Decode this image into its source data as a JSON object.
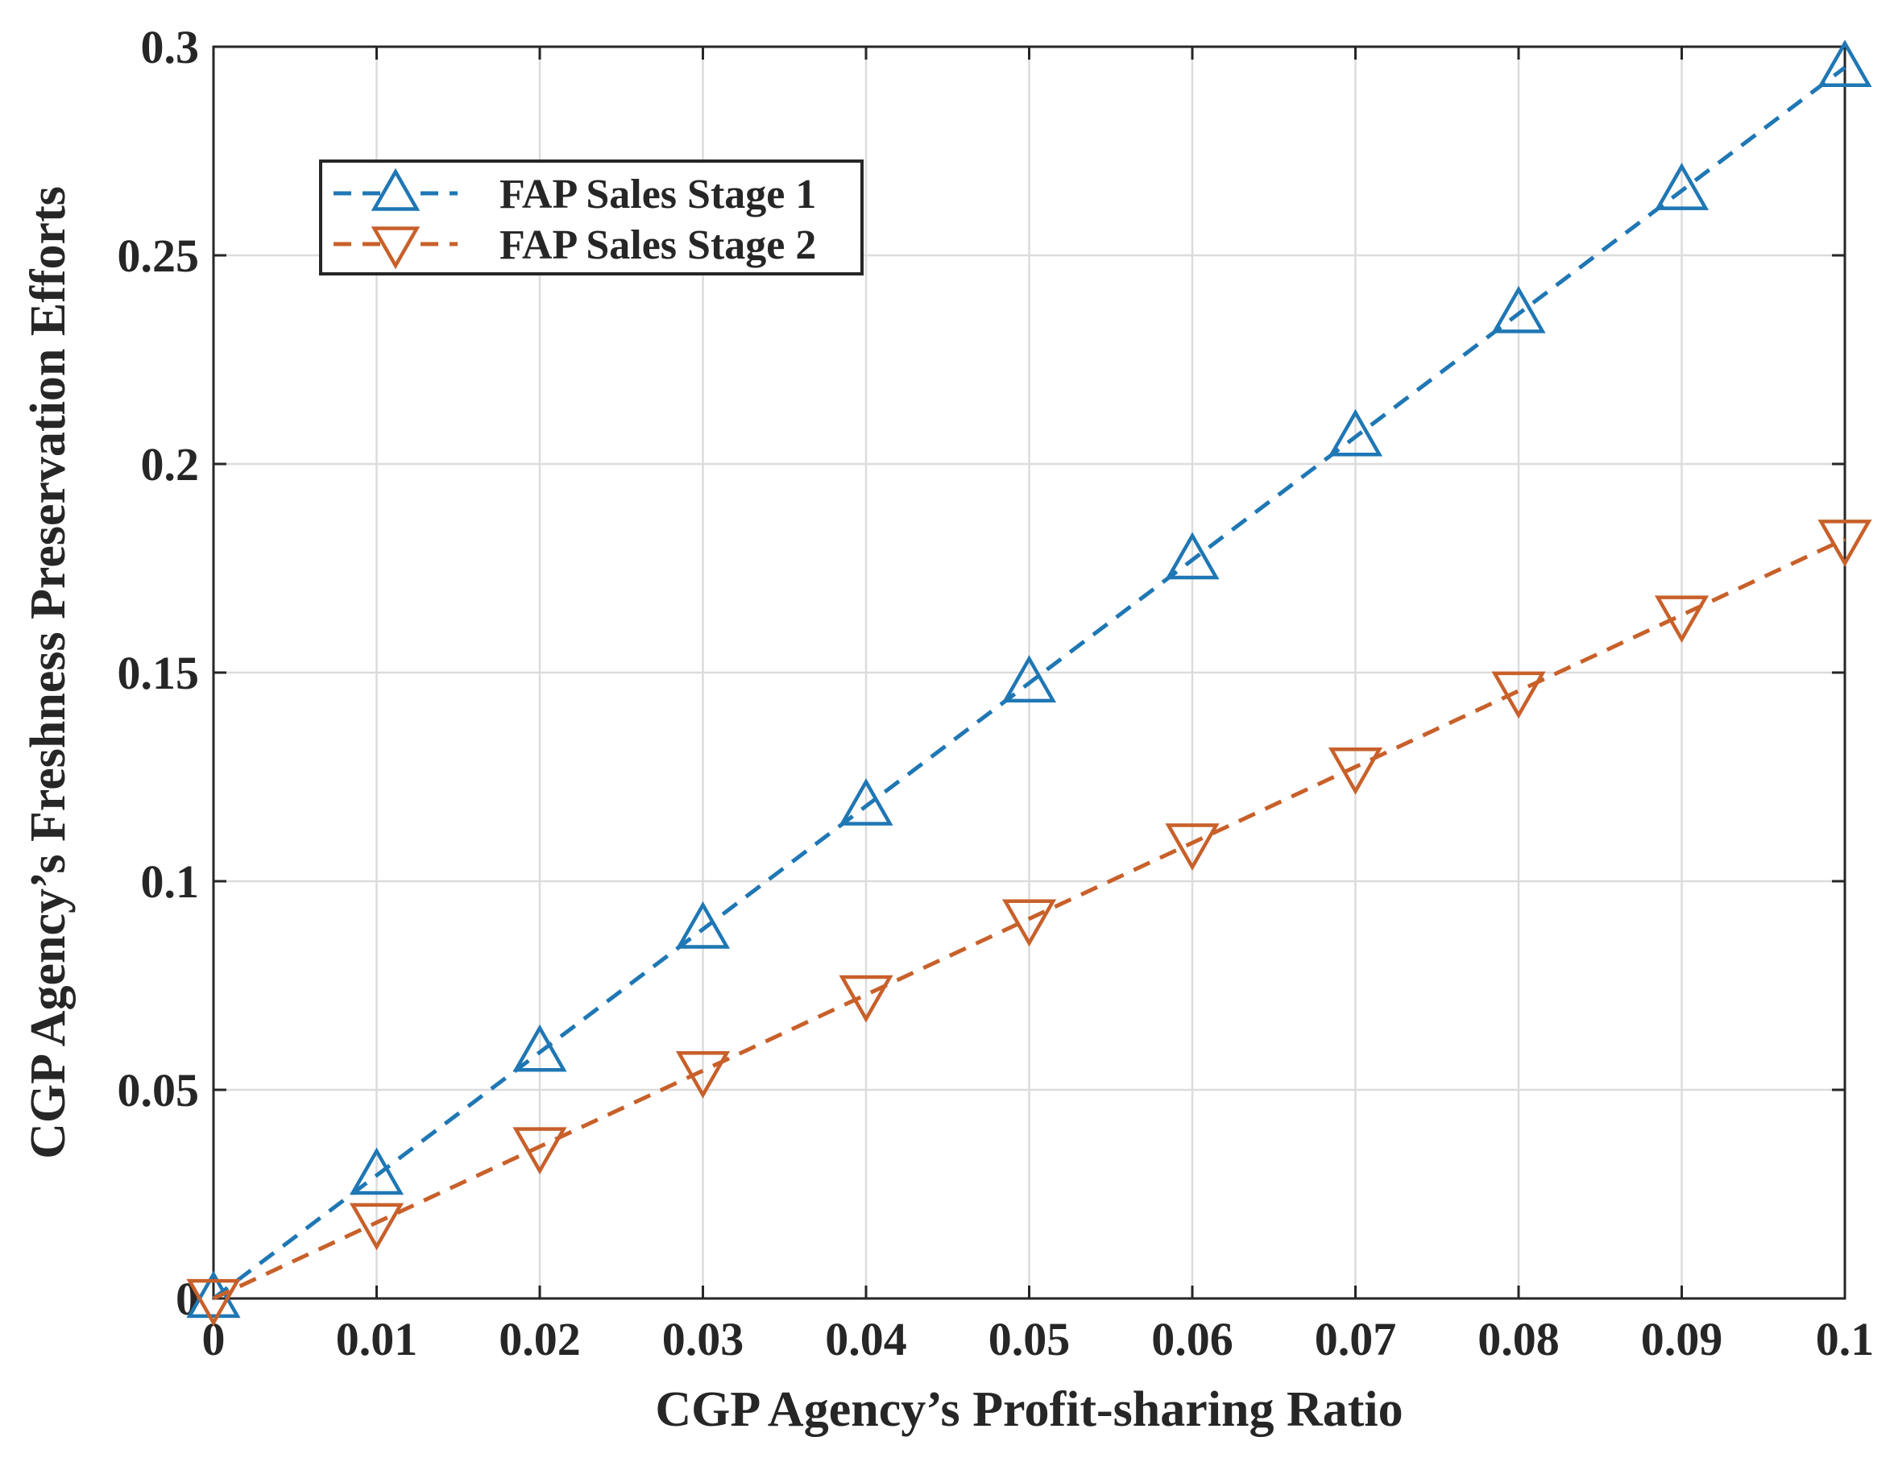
{
  "chart_data": {
    "type": "line",
    "title": "",
    "xlabel": "CGP Agency’s Profit-sharing Ratio",
    "ylabel": "CGP Agency’s Freshness Preservation Efforts",
    "xlim": [
      0,
      0.1
    ],
    "ylim": [
      0,
      0.3
    ],
    "grid": true,
    "legend_position": "top-left",
    "x": [
      0,
      0.01,
      0.02,
      0.03,
      0.04,
      0.05,
      0.06,
      0.07,
      0.08,
      0.09,
      0.1
    ],
    "x_tick_labels": [
      "0",
      "0.01",
      "0.02",
      "0.03",
      "0.04",
      "0.05",
      "0.06",
      "0.07",
      "0.08",
      "0.09",
      "0.1"
    ],
    "y_ticks": [
      0,
      0.05,
      0.1,
      0.15,
      0.2,
      0.25,
      0.3
    ],
    "y_tick_labels": [
      "0",
      "0.05",
      "0.1",
      "0.15",
      "0.2",
      "0.25",
      "0.3"
    ],
    "series": [
      {
        "name": "FAP Sales Stage 1",
        "color": "#1f77b4",
        "marker": "triangle-up",
        "line_style": "dashed",
        "values": [
          0,
          0.0295,
          0.059,
          0.0885,
          0.118,
          0.1475,
          0.177,
          0.2065,
          0.236,
          0.2655,
          0.295
        ]
      },
      {
        "name": "FAP Sales Stage 2",
        "color": "#c8602a",
        "marker": "triangle-down",
        "line_style": "dashed",
        "values": [
          0,
          0.0182,
          0.0364,
          0.0546,
          0.0728,
          0.091,
          0.1092,
          0.1274,
          0.1456,
          0.1638,
          0.182
        ]
      }
    ]
  }
}
